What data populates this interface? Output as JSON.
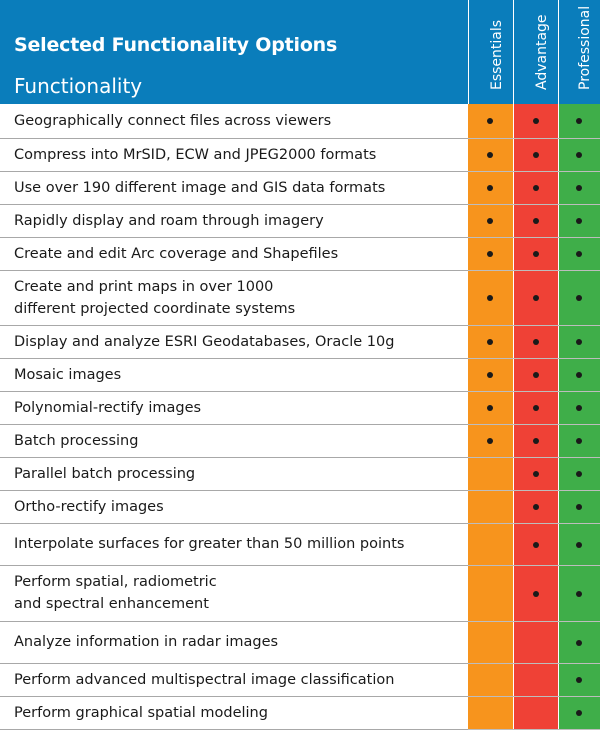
{
  "header": {
    "title": "Selected Functionality Options",
    "subtitle": "Functionality",
    "tiers": [
      "Essentials",
      "Advantage",
      "Professional"
    ]
  },
  "colors": {
    "header_blue": "#0a7dbb",
    "essentials": "#f7941d",
    "advantage": "#ef4136",
    "professional": "#3fae49"
  },
  "rows": [
    {
      "feature": "Geographically connect files across viewers",
      "essentials": true,
      "advantage": true,
      "professional": true
    },
    {
      "feature": "Compress into MrSID, ECW and JPEG2000 formats",
      "essentials": true,
      "advantage": true,
      "professional": true
    },
    {
      "feature": "Use over 190 different image and GIS data formats",
      "essentials": true,
      "advantage": true,
      "professional": true
    },
    {
      "feature": "Rapidly display and roam through imagery",
      "essentials": true,
      "advantage": true,
      "professional": true
    },
    {
      "feature": "Create and edit Arc coverage and Shapefiles",
      "essentials": true,
      "advantage": true,
      "professional": true
    },
    {
      "feature": "Create and print maps in over 1000 different projected coordinate systems",
      "essentials": true,
      "advantage": true,
      "professional": true
    },
    {
      "feature": "Display and analyze ESRI Geodatabases, Oracle 10g",
      "essentials": true,
      "advantage": true,
      "professional": true
    },
    {
      "feature": "Mosaic images",
      "essentials": true,
      "advantage": true,
      "professional": true
    },
    {
      "feature": "Polynomial-rectify images",
      "essentials": true,
      "advantage": true,
      "professional": true
    },
    {
      "feature": "Batch processing",
      "essentials": true,
      "advantage": true,
      "professional": true
    },
    {
      "feature": "Parallel batch processing",
      "essentials": false,
      "advantage": true,
      "professional": true
    },
    {
      "feature": "Ortho-rectify images",
      "essentials": false,
      "advantage": true,
      "professional": true
    },
    {
      "feature": "Interpolate surfaces for greater than 50 million points",
      "essentials": false,
      "advantage": true,
      "professional": true
    },
    {
      "feature": "Perform spatial, radiometric and spectral enhancement",
      "essentials": false,
      "advantage": true,
      "professional": true
    },
    {
      "feature": "Analyze information in radar images",
      "essentials": false,
      "advantage": false,
      "professional": true
    },
    {
      "feature": "Perform advanced multispectral image classification",
      "essentials": false,
      "advantage": false,
      "professional": true
    },
    {
      "feature": "Perform graphical spatial modeling",
      "essentials": false,
      "advantage": false,
      "professional": true
    }
  ]
}
